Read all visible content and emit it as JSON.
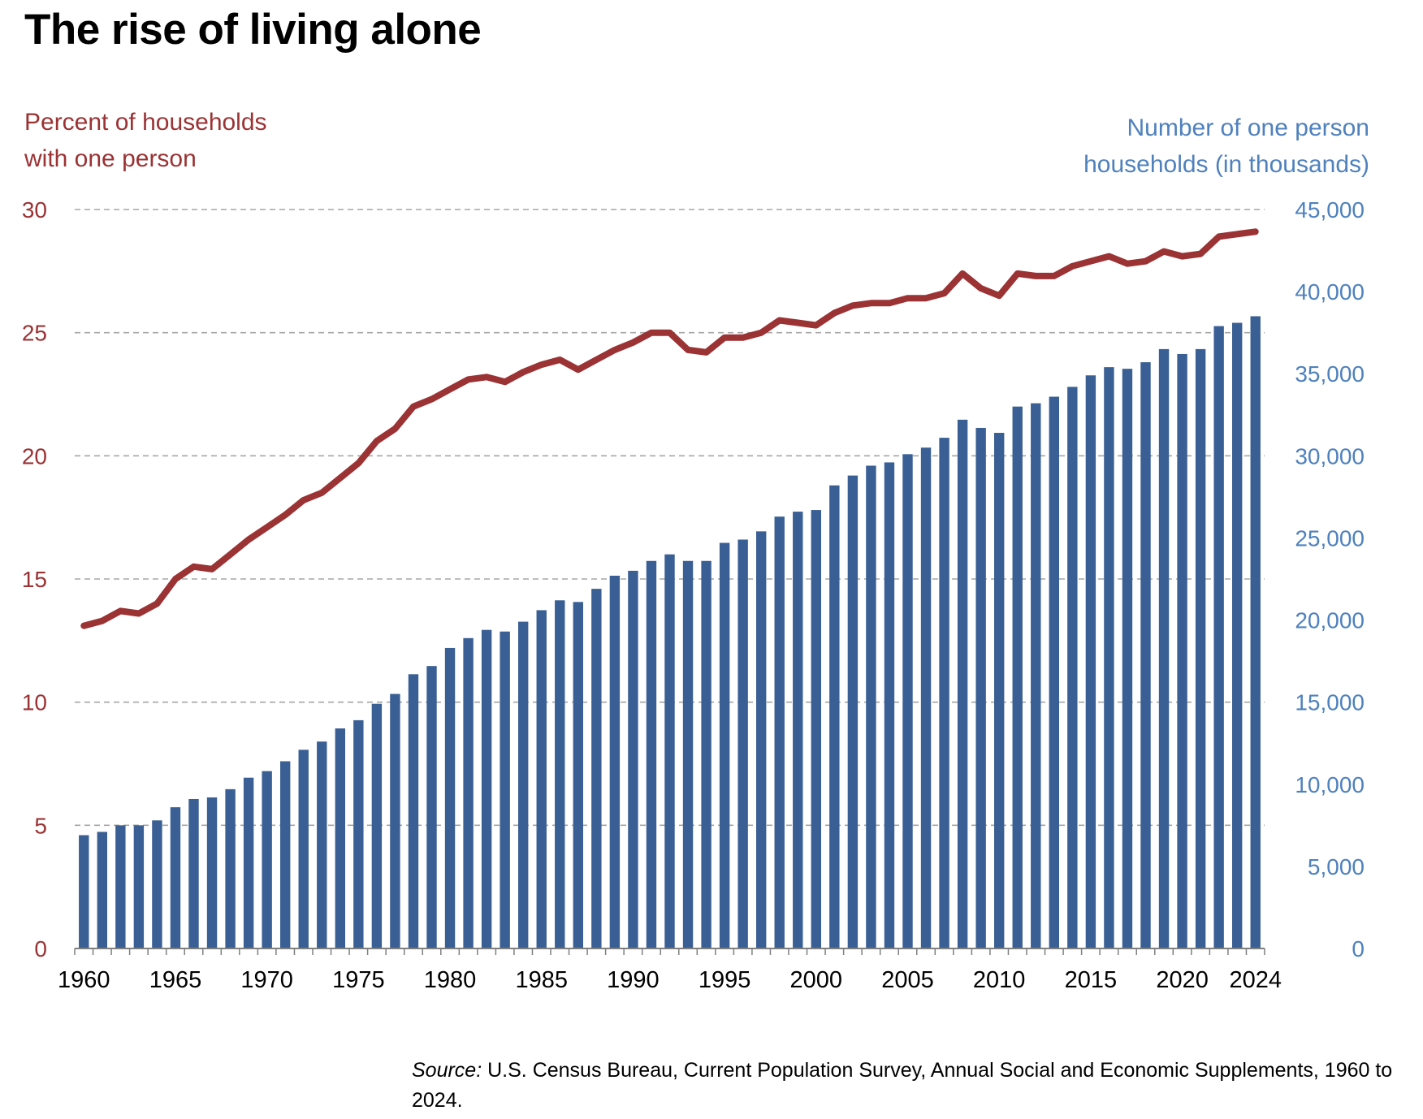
{
  "chart_data": {
    "type": "bar+line",
    "title": "The rise of living alone",
    "x": [
      1960,
      1961,
      1962,
      1963,
      1964,
      1965,
      1966,
      1967,
      1968,
      1969,
      1970,
      1971,
      1972,
      1973,
      1974,
      1975,
      1976,
      1977,
      1978,
      1979,
      1980,
      1981,
      1982,
      1983,
      1984,
      1985,
      1986,
      1987,
      1988,
      1989,
      1990,
      1991,
      1992,
      1993,
      1994,
      1995,
      1996,
      1997,
      1998,
      1999,
      2000,
      2001,
      2002,
      2003,
      2004,
      2005,
      2006,
      2007,
      2008,
      2009,
      2010,
      2011,
      2012,
      2013,
      2014,
      2015,
      2016,
      2017,
      2018,
      2019,
      2020,
      2021,
      2022,
      2023,
      2024
    ],
    "x_tick_labels": [
      "1960",
      "1965",
      "1970",
      "1975",
      "1980",
      "1985",
      "1990",
      "1995",
      "2000",
      "2005",
      "2010",
      "2015",
      "2020",
      "2024"
    ],
    "left_axis": {
      "label_line1": "Percent of households",
      "label_line2": "with one person",
      "ylim": [
        0,
        30
      ],
      "ticks": [
        "0",
        "5",
        "10",
        "15",
        "20",
        "25",
        "30"
      ]
    },
    "right_axis": {
      "label_line1": "Number of one person",
      "label_line2": "households (in thousands)",
      "ylim": [
        0,
        45000
      ],
      "ticks": [
        "0",
        "5,000",
        "10,000",
        "15,000",
        "20,000",
        "25,000",
        "30,000",
        "35,000",
        "40,000",
        "45,000"
      ]
    },
    "grid": "horizontal dashed",
    "series": [
      {
        "type": "line",
        "axis": "left",
        "color": "#9b3234",
        "values": [
          13.1,
          13.3,
          13.7,
          13.6,
          14.0,
          15.0,
          15.5,
          15.4,
          16.0,
          16.6,
          17.1,
          17.6,
          18.2,
          18.5,
          19.1,
          19.7,
          20.6,
          21.1,
          22.0,
          22.3,
          22.7,
          23.1,
          23.2,
          23.0,
          23.4,
          23.7,
          23.9,
          23.5,
          23.9,
          24.3,
          24.6,
          25.0,
          25.0,
          24.3,
          24.2,
          24.8,
          24.8,
          25.0,
          25.5,
          25.4,
          25.3,
          25.8,
          26.1,
          26.2,
          26.2,
          26.4,
          26.4,
          26.6,
          27.4,
          26.8,
          26.5,
          27.4,
          27.3,
          27.3,
          27.7,
          27.9,
          28.1,
          27.8,
          27.9,
          28.3,
          28.1,
          28.2,
          28.9,
          29.0,
          29.1
        ]
      },
      {
        "type": "bar",
        "axis": "right",
        "color": "#3a5f94",
        "values": [
          6900,
          7100,
          7500,
          7500,
          7800,
          8600,
          9100,
          9200,
          9700,
          10400,
          10800,
          11400,
          12100,
          12600,
          13400,
          13900,
          14900,
          15500,
          16700,
          17200,
          18300,
          18900,
          19400,
          19300,
          19900,
          20600,
          21200,
          21100,
          21900,
          22700,
          23000,
          23600,
          24000,
          23600,
          23600,
          24700,
          24900,
          25400,
          26300,
          26600,
          26700,
          28200,
          28800,
          29400,
          29600,
          30100,
          30500,
          31100,
          32200,
          31700,
          31400,
          33000,
          33200,
          33600,
          34200,
          34900,
          35400,
          35300,
          35700,
          36500,
          36200,
          36500,
          37900,
          38100,
          38500
        ]
      }
    ]
  },
  "source": {
    "prefix": "Source:",
    "text": "U.S. Census Bureau, Current Population Survey, Annual Social and Economic Supplements, 1960 to 2024."
  }
}
